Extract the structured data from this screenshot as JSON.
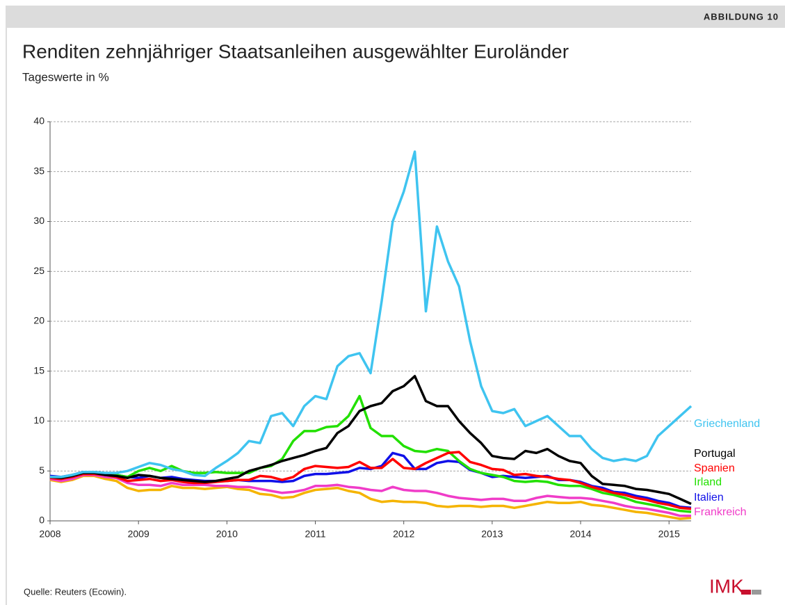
{
  "header": {
    "label": "ABBILDUNG 10"
  },
  "chart_data": {
    "type": "line",
    "title": "Renditen zehnjähriger Staatsanleihen ausgewählter Euroländer",
    "subtitle": "Tageswerte in %",
    "x": [
      2008,
      2008.125,
      2008.25,
      2008.375,
      2008.5,
      2008.625,
      2008.75,
      2008.875,
      2009,
      2009.125,
      2009.25,
      2009.375,
      2009.5,
      2009.625,
      2009.75,
      2009.875,
      2010,
      2010.125,
      2010.25,
      2010.375,
      2010.5,
      2010.625,
      2010.75,
      2010.875,
      2011,
      2011.125,
      2011.25,
      2011.375,
      2011.5,
      2011.625,
      2011.75,
      2011.875,
      2012,
      2012.125,
      2012.25,
      2012.375,
      2012.5,
      2012.625,
      2012.75,
      2012.875,
      2013,
      2013.125,
      2013.25,
      2013.375,
      2013.5,
      2013.625,
      2013.75,
      2013.875,
      2014,
      2014.125,
      2014.25,
      2014.375,
      2014.5,
      2014.625,
      2014.75,
      2014.875,
      2015,
      2015.125,
      2015.25
    ],
    "xlim": [
      2008,
      2015.25
    ],
    "xticks": [
      2008,
      2009,
      2010,
      2011,
      2012,
      2013,
      2014,
      2015
    ],
    "ylim": [
      0,
      40
    ],
    "yticks": [
      0,
      5,
      10,
      15,
      20,
      25,
      30,
      35,
      40
    ],
    "grid": true,
    "series": [
      {
        "name": "Griechenland",
        "color": "#3fc4f0",
        "values": [
          4.4,
          4.4,
          4.6,
          4.9,
          4.9,
          4.8,
          4.8,
          5.0,
          5.4,
          5.8,
          5.6,
          5.2,
          5.0,
          4.6,
          4.5,
          5.3,
          6.0,
          6.8,
          8.0,
          7.8,
          10.5,
          10.8,
          9.5,
          11.5,
          12.5,
          12.2,
          15.5,
          16.5,
          16.8,
          14.8,
          22,
          30,
          33,
          37,
          21,
          29.5,
          26,
          23.5,
          18,
          13.5,
          11,
          10.8,
          11.2,
          9.5,
          10,
          10.5,
          9.5,
          8.5,
          8.5,
          7.2,
          6.3,
          6,
          6.2,
          6,
          6.5,
          8.5,
          9.5,
          10.5,
          11.5
        ]
      },
      {
        "name": "Portugal",
        "color": "#000000",
        "values": [
          4.4,
          4.3,
          4.5,
          4.8,
          4.8,
          4.6,
          4.5,
          4.3,
          4.6,
          4.5,
          4.3,
          4.2,
          4.1,
          4.0,
          3.9,
          4.0,
          4.2,
          4.4,
          5.0,
          5.3,
          5.6,
          6.0,
          6.3,
          6.6,
          7.0,
          7.3,
          8.8,
          9.5,
          11.0,
          11.5,
          11.8,
          13.0,
          13.5,
          14.5,
          12.0,
          11.5,
          11.5,
          10.0,
          8.8,
          7.8,
          6.5,
          6.3,
          6.2,
          7.0,
          6.8,
          7.2,
          6.5,
          6.0,
          5.8,
          4.5,
          3.7,
          3.6,
          3.5,
          3.2,
          3.1,
          2.9,
          2.7,
          2.2,
          1.7
        ]
      },
      {
        "name": "Spanien",
        "color": "#ff0000",
        "values": [
          4.3,
          4.2,
          4.4,
          4.7,
          4.7,
          4.6,
          4.4,
          4.0,
          4.1,
          4.2,
          4.0,
          4.1,
          3.9,
          3.8,
          3.8,
          3.9,
          4.0,
          4.1,
          4.1,
          4.5,
          4.4,
          4.1,
          4.4,
          5.2,
          5.5,
          5.4,
          5.3,
          5.4,
          5.9,
          5.3,
          5.3,
          6.2,
          5.3,
          5.2,
          5.8,
          6.3,
          6.8,
          6.9,
          5.9,
          5.6,
          5.2,
          5.1,
          4.6,
          4.7,
          4.5,
          4.4,
          4.2,
          4.1,
          3.8,
          3.4,
          3.1,
          2.8,
          2.6,
          2.3,
          2.1,
          1.8,
          1.6,
          1.3,
          1.2
        ]
      },
      {
        "name": "Irland",
        "color": "#22e000",
        "values": [
          4.4,
          4.3,
          4.6,
          4.8,
          4.8,
          4.6,
          4.6,
          4.4,
          5.0,
          5.3,
          5.0,
          5.5,
          5.0,
          4.8,
          4.8,
          4.9,
          4.8,
          4.8,
          4.8,
          5.3,
          5.5,
          6.2,
          8.0,
          9.0,
          9.0,
          9.4,
          9.5,
          10.5,
          12.5,
          9.3,
          8.5,
          8.5,
          7.5,
          7.0,
          6.9,
          7.2,
          7.0,
          6.0,
          5.2,
          4.8,
          4.6,
          4.4,
          4.0,
          3.9,
          4.0,
          3.9,
          3.6,
          3.5,
          3.5,
          3.2,
          2.8,
          2.6,
          2.3,
          1.9,
          1.7,
          1.5,
          1.2,
          1.0,
          0.9
        ]
      },
      {
        "name": "Italien",
        "color": "#1010e8",
        "values": [
          4.5,
          4.4,
          4.6,
          4.9,
          4.8,
          4.6,
          4.6,
          4.4,
          4.3,
          4.5,
          4.3,
          4.4,
          4.2,
          4.1,
          4.0,
          4.0,
          4.0,
          4.1,
          4.0,
          4.0,
          4.0,
          3.9,
          4.0,
          4.5,
          4.7,
          4.7,
          4.8,
          4.9,
          5.3,
          5.2,
          5.5,
          6.8,
          6.5,
          5.2,
          5.2,
          5.8,
          6.0,
          5.9,
          5.1,
          4.8,
          4.4,
          4.5,
          4.4,
          4.3,
          4.4,
          4.5,
          4.1,
          4.1,
          3.9,
          3.5,
          3.3,
          2.9,
          2.8,
          2.5,
          2.3,
          2.0,
          1.8,
          1.4,
          1.3
        ]
      },
      {
        "name": "Frankreich",
        "color": "#f03cc8",
        "values": [
          4.2,
          4.0,
          4.2,
          4.6,
          4.6,
          4.4,
          4.3,
          3.8,
          3.6,
          3.6,
          3.5,
          3.8,
          3.6,
          3.6,
          3.6,
          3.5,
          3.5,
          3.4,
          3.4,
          3.2,
          3.0,
          2.8,
          2.9,
          3.1,
          3.5,
          3.5,
          3.6,
          3.4,
          3.3,
          3.1,
          3.0,
          3.4,
          3.1,
          3.0,
          3.0,
          2.8,
          2.5,
          2.3,
          2.2,
          2.1,
          2.2,
          2.2,
          2.0,
          2.0,
          2.3,
          2.5,
          2.4,
          2.3,
          2.3,
          2.2,
          2.0,
          1.8,
          1.5,
          1.3,
          1.2,
          1.0,
          0.8,
          0.5,
          0.5
        ]
      },
      {
        "color": "#f5b400",
        "values": [
          4.1,
          3.9,
          4.1,
          4.5,
          4.5,
          4.2,
          4.0,
          3.3,
          3.0,
          3.1,
          3.1,
          3.5,
          3.3,
          3.3,
          3.2,
          3.3,
          3.4,
          3.2,
          3.1,
          2.7,
          2.6,
          2.3,
          2.4,
          2.8,
          3.1,
          3.2,
          3.3,
          3.0,
          2.8,
          2.2,
          1.9,
          2.0,
          1.9,
          1.9,
          1.8,
          1.5,
          1.4,
          1.5,
          1.5,
          1.4,
          1.5,
          1.5,
          1.3,
          1.5,
          1.7,
          1.9,
          1.8,
          1.8,
          1.9,
          1.6,
          1.5,
          1.3,
          1.1,
          0.9,
          0.8,
          0.6,
          0.4,
          0.2,
          0.3
        ]
      }
    ]
  },
  "footer": {
    "source": "Quelle: Reuters (Ecowin).",
    "logo": "IMK"
  }
}
